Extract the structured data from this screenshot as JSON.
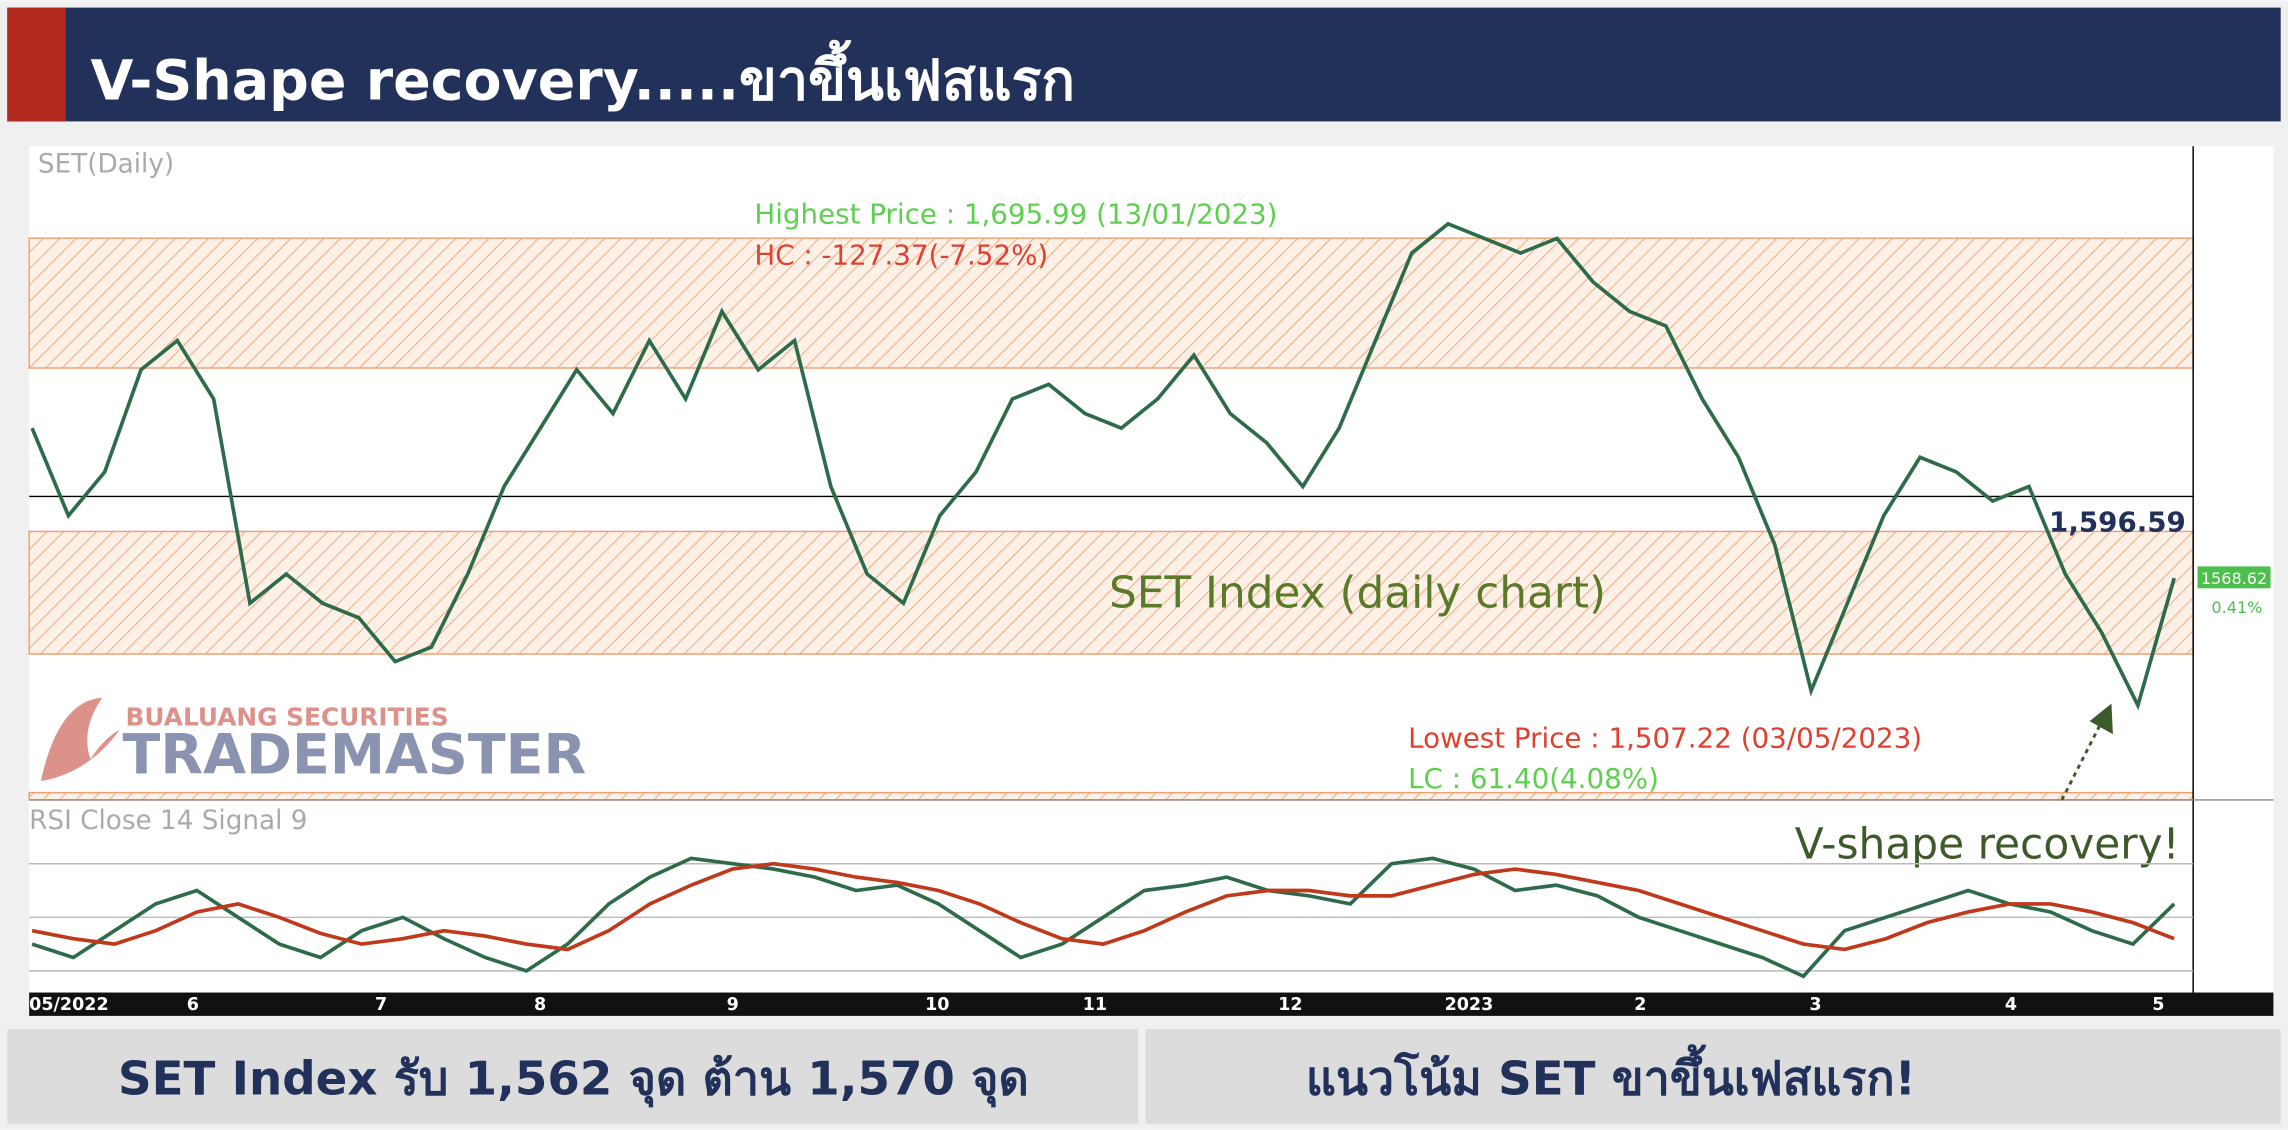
{
  "header": {
    "title": "V-Shape recovery.....ขาขึ้นเฟสแรก"
  },
  "chart_data": {
    "type": "line",
    "title": "SET Index (daily chart)",
    "panel_label": "SET(Daily)",
    "series": [
      {
        "name": "SET",
        "color": "#2e6b4a",
        "values": [
          1620,
          1590,
          1605,
          1640,
          1650,
          1630,
          1560,
          1570,
          1560,
          1555,
          1540,
          1545,
          1570,
          1600,
          1620,
          1640,
          1625,
          1650,
          1630,
          1660,
          1640,
          1650,
          1600,
          1570,
          1560,
          1590,
          1605,
          1630,
          1635,
          1625,
          1620,
          1630,
          1645,
          1625,
          1615,
          1600,
          1620,
          1650,
          1680,
          1690,
          1685,
          1680,
          1685,
          1670,
          1660,
          1655,
          1630,
          1610,
          1580,
          1530,
          1560,
          1590,
          1610,
          1605,
          1595,
          1600,
          1570,
          1550,
          1525,
          1568.62
        ]
      }
    ],
    "ylim": [
      1492.6,
      1716.6
    ],
    "reference_line": {
      "value": 1596.59,
      "label": "1,596.59"
    },
    "last_price": {
      "value": 1568.62,
      "label": "1568.62",
      "change": "0.41%"
    },
    "annotations": [
      "Highest Price : 1,695.99 (13/01/2023)",
      "HC : -127.37(-7.52%)",
      "Lowest Price : 1,507.22 (03/05/2023)",
      "LC : 61.40(4.08%)",
      "V-shape recovery!"
    ],
    "x_labels": [
      "05/2022",
      "6",
      "7",
      "8",
      "9",
      "10",
      "11",
      "12",
      "2023",
      "2",
      "3",
      "4",
      "5"
    ],
    "watermark": [
      "BUALUANG SECURITIES",
      "TRADEMASTER"
    ]
  },
  "rsi_chart": {
    "type": "line",
    "panel_label": "RSI Close 14 Signal 9",
    "series": [
      {
        "name": "RSI",
        "color": "#2e6b4a",
        "values": [
          40,
          35,
          45,
          55,
          60,
          50,
          40,
          35,
          45,
          50,
          42,
          35,
          30,
          40,
          55,
          65,
          72,
          70,
          68,
          65,
          60,
          62,
          55,
          45,
          35,
          40,
          50,
          60,
          62,
          65,
          60,
          58,
          55,
          70,
          72,
          68,
          60,
          62,
          58,
          50,
          45,
          40,
          35,
          28,
          45,
          50,
          55,
          60,
          55,
          52,
          45,
          40,
          55
        ]
      },
      {
        "name": "Signal",
        "color": "#c0391b",
        "values": [
          45,
          42,
          40,
          45,
          52,
          55,
          50,
          44,
          40,
          42,
          45,
          43,
          40,
          38,
          45,
          55,
          62,
          68,
          70,
          68,
          65,
          63,
          60,
          55,
          48,
          42,
          40,
          45,
          52,
          58,
          60,
          60,
          58,
          58,
          62,
          66,
          68,
          66,
          63,
          60,
          55,
          50,
          45,
          40,
          38,
          42,
          48,
          52,
          55,
          55,
          52,
          48,
          42
        ]
      }
    ],
    "ylim": [
      23,
      90
    ],
    "yticks": [
      30,
      50,
      70
    ],
    "grid": true
  },
  "footer": {
    "left": "SET Index รับ 1,562 จุด ต้าน 1,570 จุด",
    "right": "แนวโน้ม SET ขาขึ้นเฟสแรก!"
  }
}
